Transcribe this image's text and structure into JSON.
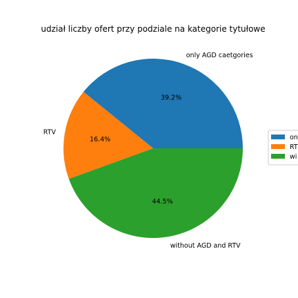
{
  "chart_data": {
    "type": "pie",
    "title": "udział liczby ofert przy podziale na kategorie tytułowe",
    "slices": [
      {
        "label": "only AGD caetgories",
        "pct_label": "39.2%",
        "value": 39.2,
        "color": "#1f77b4"
      },
      {
        "label": "RTV",
        "pct_label": "16.4%",
        "value": 16.4,
        "color": "#ff7f0e"
      },
      {
        "label": "without AGD and RTV",
        "pct_label": "44.5%",
        "value": 44.5,
        "color": "#2ca02c"
      }
    ],
    "legend": {
      "placement": "right (clipped)",
      "entries": [
        "on",
        "RT",
        "wi"
      ]
    },
    "start_angle_deg": 0,
    "direction": "counterclockwise"
  }
}
